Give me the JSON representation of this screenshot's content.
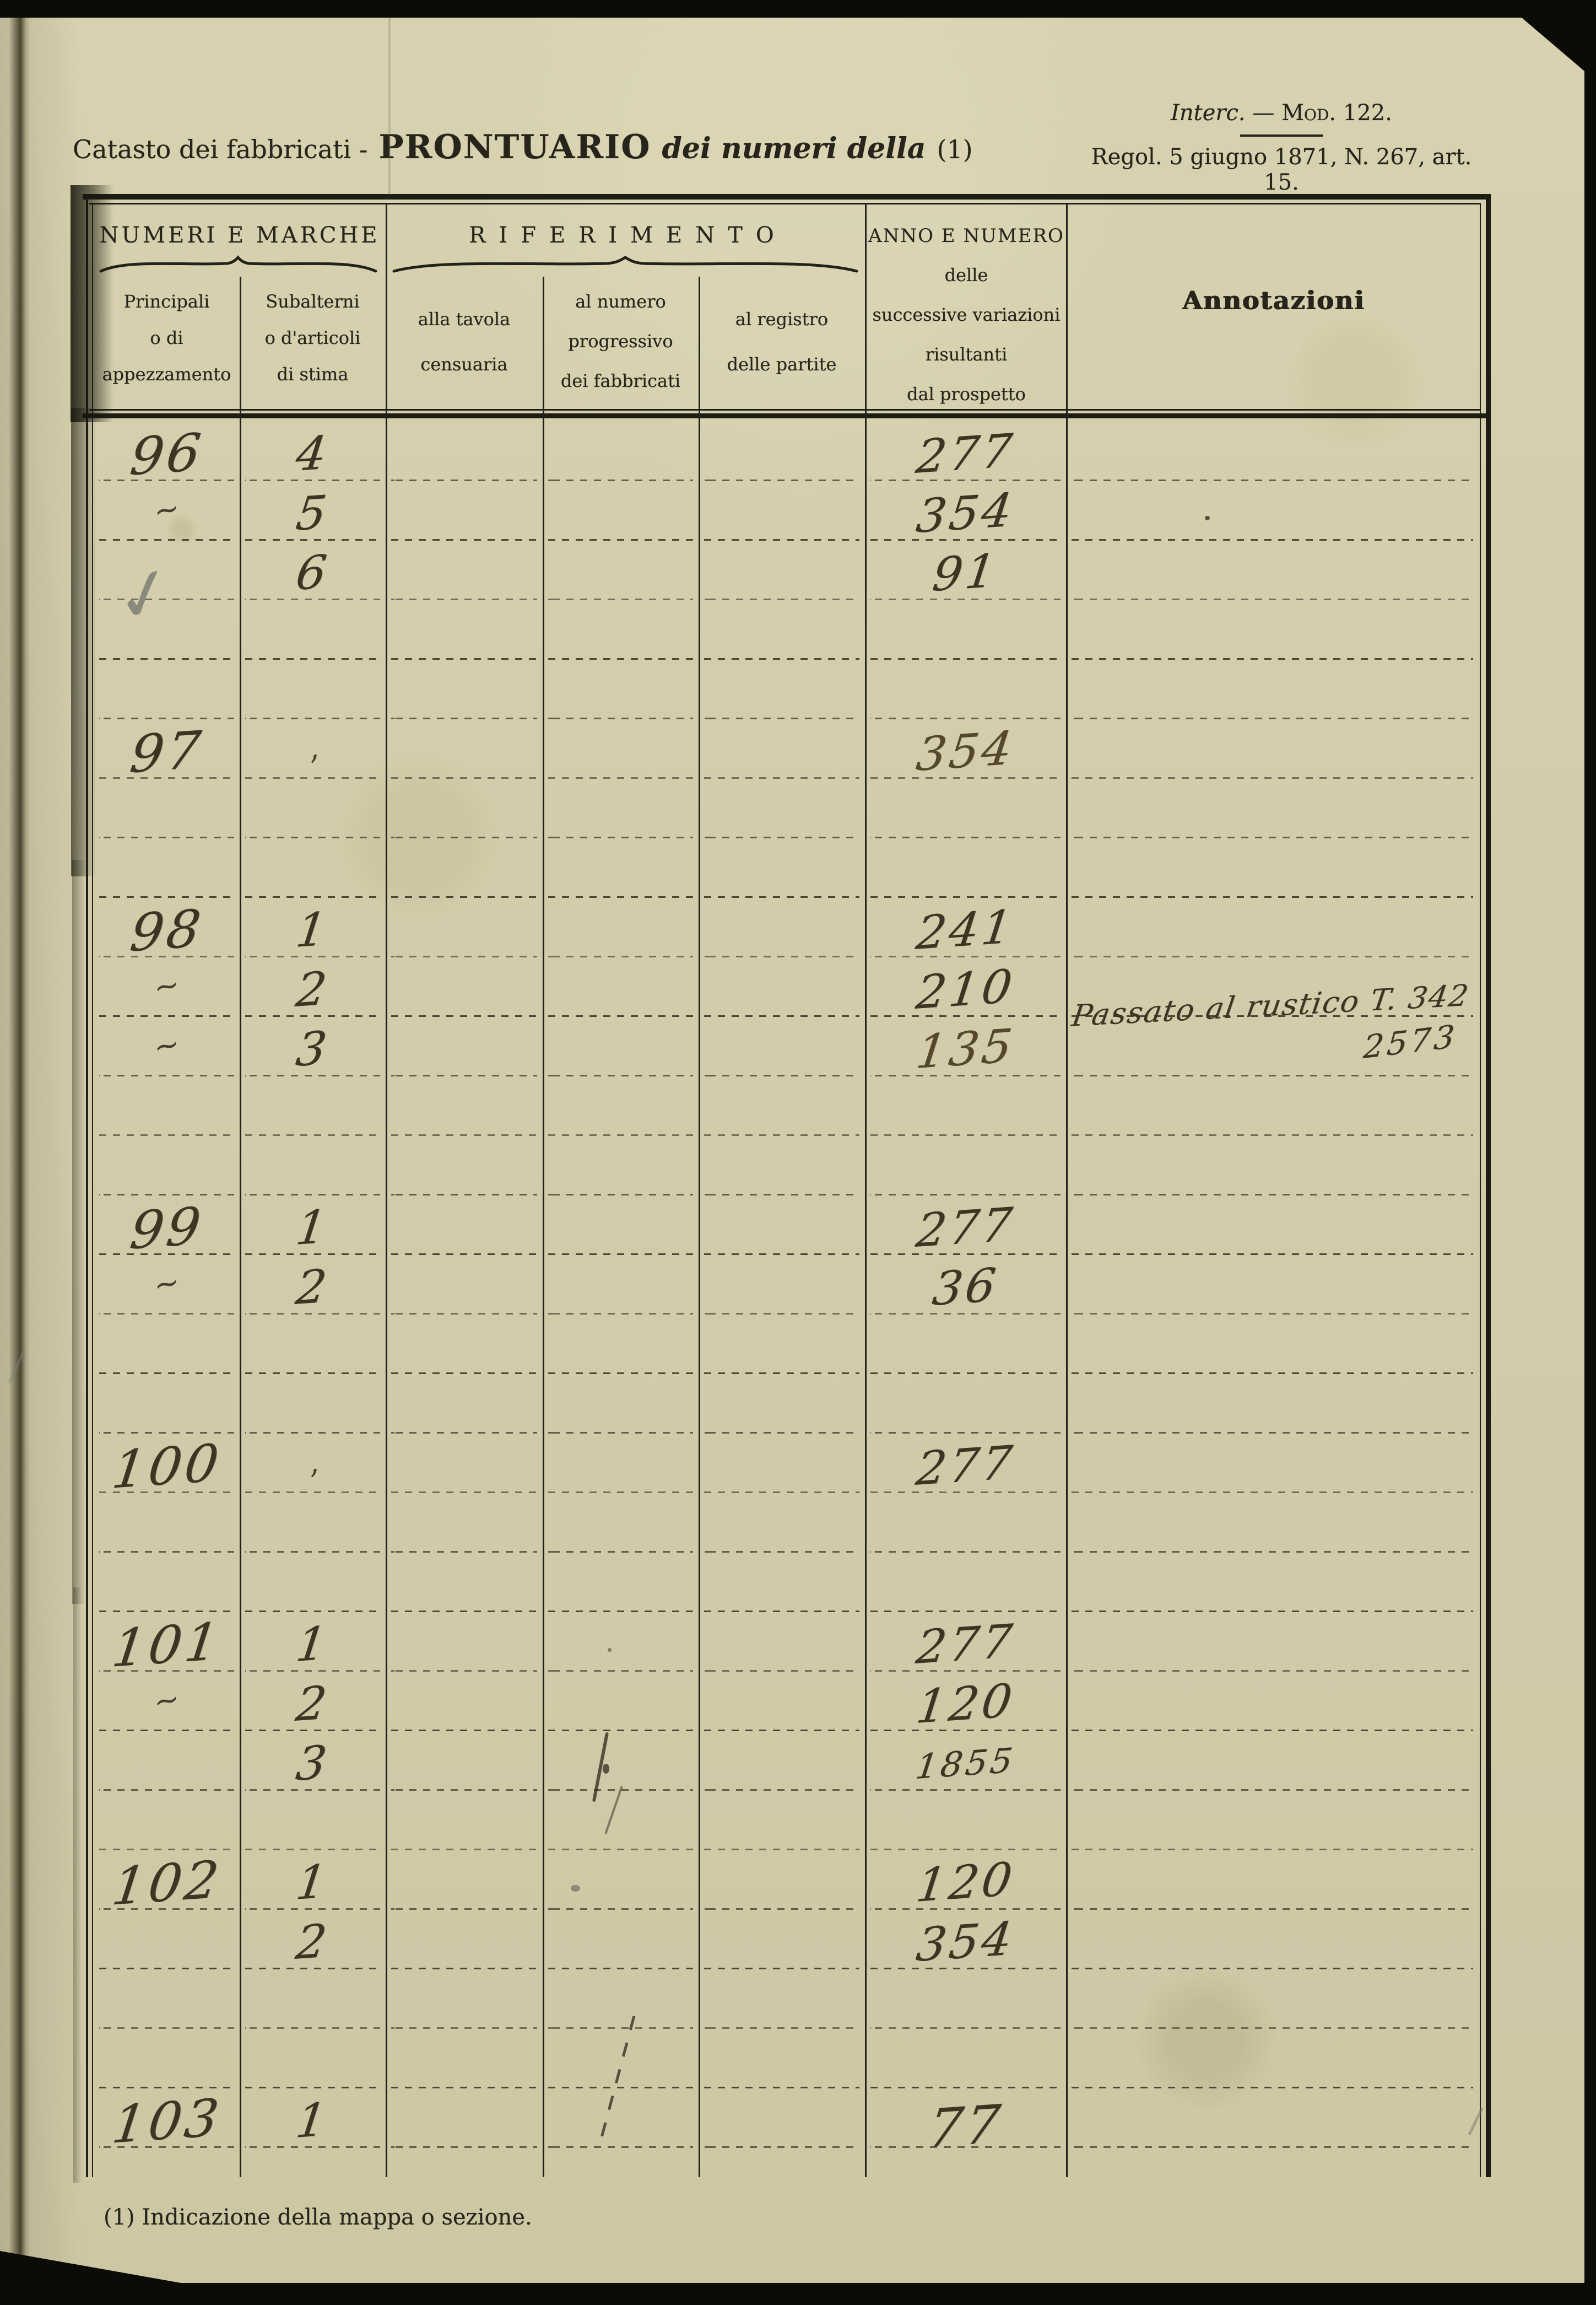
{
  "page": {
    "header": {
      "title_left": "Catasto dei fabbricati -",
      "title_main": "PRONTUARIO",
      "title_italic": "dei numeri della",
      "title_ref": "(1)",
      "top_right_interc": "Interc.",
      "top_right_dash": "—",
      "top_right_mod": "Mod. 122.",
      "top_right_regol": "Regol. 5 giugno 1871, N. 267, art. 15."
    },
    "footnote": "(1) Indicazione della mappa o sezione."
  },
  "table": {
    "group_headers": {
      "numeri_e_marche": "NUMERI E MARCHE",
      "riferimento": "RIFERIMENTO",
      "anno_lines": [
        "ANNO E NUMERO",
        "delle",
        "successive variazioni",
        "risultanti",
        "dal prospetto"
      ],
      "annotazioni": "Annotazioni"
    },
    "column_headers": {
      "principali": [
        "Principali",
        "o di",
        "appezzamento"
      ],
      "subalterni": [
        "Subalterni",
        "o d'articoli",
        "di stima"
      ],
      "alla_tavola": [
        "alla tavola",
        "censuaria"
      ],
      "al_numero": [
        "al numero",
        "progressivo",
        "dei fabbricati"
      ],
      "al_registro": [
        "al registro",
        "delle partite"
      ]
    },
    "rows": [
      {
        "principale": "96",
        "subalterno": "4",
        "variazione": "277"
      },
      {
        "principale": "~",
        "subalterno": "5",
        "variazione": "354",
        "ink_dot": true
      },
      {
        "principale": "✓",
        "pencil": true,
        "subalterno": "6",
        "variazione": "91"
      },
      {},
      {},
      {
        "principale": "97",
        "subalterno": ",",
        "variazione": "354",
        "light": true
      },
      {},
      {},
      {
        "principale": "98",
        "subalterno": "1",
        "variazione": "241"
      },
      {
        "principale": "~",
        "subalterno": "2",
        "variazione": "210",
        "annotazione": "Passato al rustico T. 342",
        "annotazione2": "2573"
      },
      {
        "principale": "~",
        "subalterno": "3",
        "variazione": "135",
        "light": true
      },
      {},
      {},
      {
        "principale": "99",
        "subalterno": "1",
        "variazione": "277"
      },
      {
        "principale": "~",
        "subalterno": "2",
        "variazione": "36"
      },
      {},
      {},
      {
        "principale": "100",
        "subalterno": ",",
        "variazione": "277"
      },
      {},
      {},
      {
        "principale": "101",
        "subalterno": "1",
        "variazione": "277"
      },
      {
        "principale": "~",
        "subalterno": "2",
        "variazione": "120"
      },
      {
        "subalterno": "3",
        "variazione": "1855",
        "v_small": true
      },
      {},
      {
        "principale": "102",
        "subalterno": "1",
        "variazione": "120"
      },
      {
        "subalterno": "2",
        "variazione": "354"
      },
      {},
      {},
      {
        "principale": "103",
        "subalterno": "1",
        "variazione": "77",
        "v_big": true
      }
    ]
  },
  "palette": {
    "paper": "#d3cdab",
    "printed_ink": "#26241b",
    "handwriting_ink": "#3e3424",
    "pencil": "#7d7e73",
    "scan_background": "#0b0b08"
  }
}
